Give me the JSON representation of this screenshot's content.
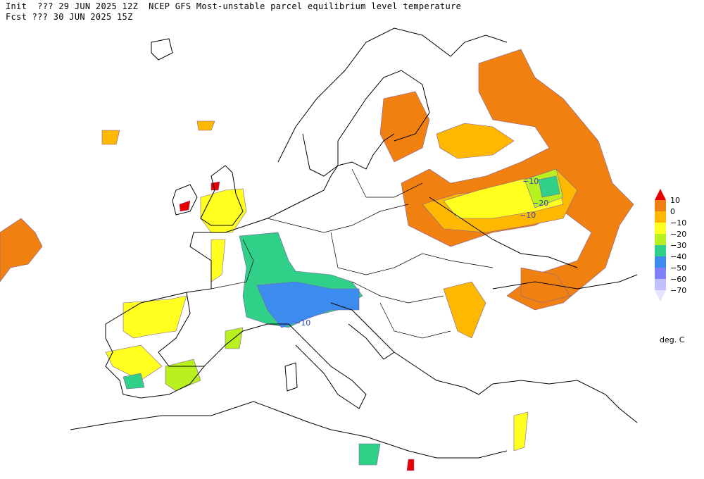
{
  "header": {
    "line1": "Init  ??? 29 JUN 2025 12Z  NCEP GFS Most-unstable parcel equilibrium level temperature",
    "line2": "Fcst ??? 30 JUN 2025 15Z"
  },
  "legend": {
    "labels": [
      "10",
      "0",
      "−10",
      "−20",
      "−30",
      "−40",
      "−50",
      "−60",
      "−70"
    ],
    "colors": [
      "#e80000",
      "#f08010",
      "#ffb800",
      "#ffff20",
      "#b8f020",
      "#30d088",
      "#3c8cf0",
      "#8080ff",
      "#c0c0ff",
      "#e4e4ff"
    ],
    "units": "deg. C"
  },
  "contour_labels": [
    "−10",
    "−20",
    "−10",
    "−10"
  ]
}
